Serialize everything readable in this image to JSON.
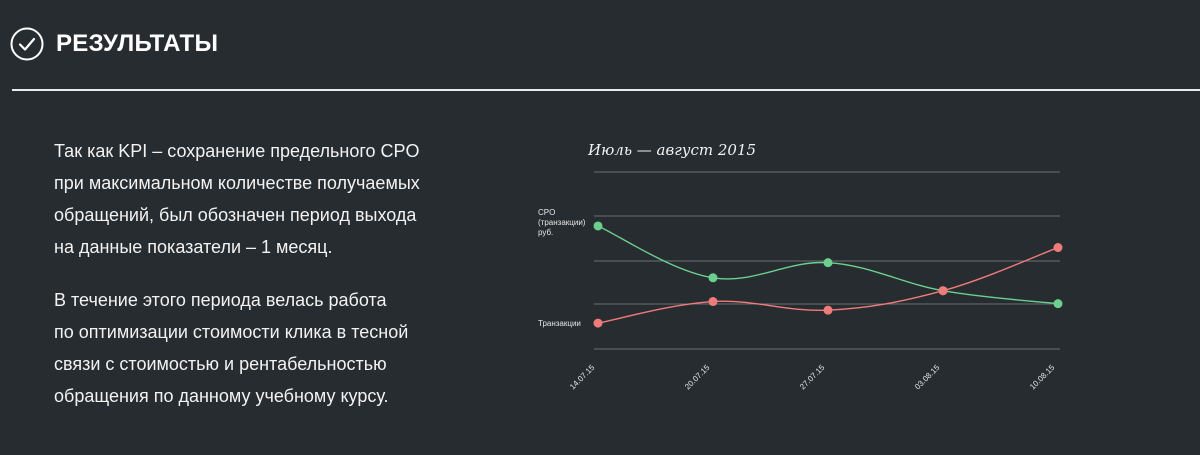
{
  "header": {
    "title": "РЕЗУЛЬТАТЫ",
    "icon": "check-circle-icon"
  },
  "content": {
    "paragraphs": [
      "Так как KPI – сохранение предельного CPO\nпри максимальном количестве получаемых\nобращений, был обозначен период выхода\nна данные показатели – 1 месяц.",
      "В течение этого периода велась работа\nпо оптимизации стоимости клика в тесной\nсвязи с стоимостью и рентабельностью\nобращения по данному учебному курсу."
    ]
  },
  "chart_data": {
    "type": "line",
    "title": "Июль — август 2015",
    "x": [
      "14.07.15",
      "20.07.15",
      "27.07.15",
      "03.08.15",
      "10.08.15"
    ],
    "series": [
      {
        "name": "CPO (транзакции) руб.",
        "label_lines": [
          "CPO",
          "(транзакции)",
          "руб."
        ],
        "color": "#6ccf8e",
        "values": [
          57,
          33,
          40,
          27,
          21
        ]
      },
      {
        "name": "Транзакции",
        "label_lines": [
          "Транзакции"
        ],
        "color": "#f07b7b",
        "values": [
          12,
          22,
          18,
          27,
          47
        ]
      }
    ],
    "ylim": [
      0,
      82
    ],
    "grid": true,
    "legend": "inline-left"
  }
}
